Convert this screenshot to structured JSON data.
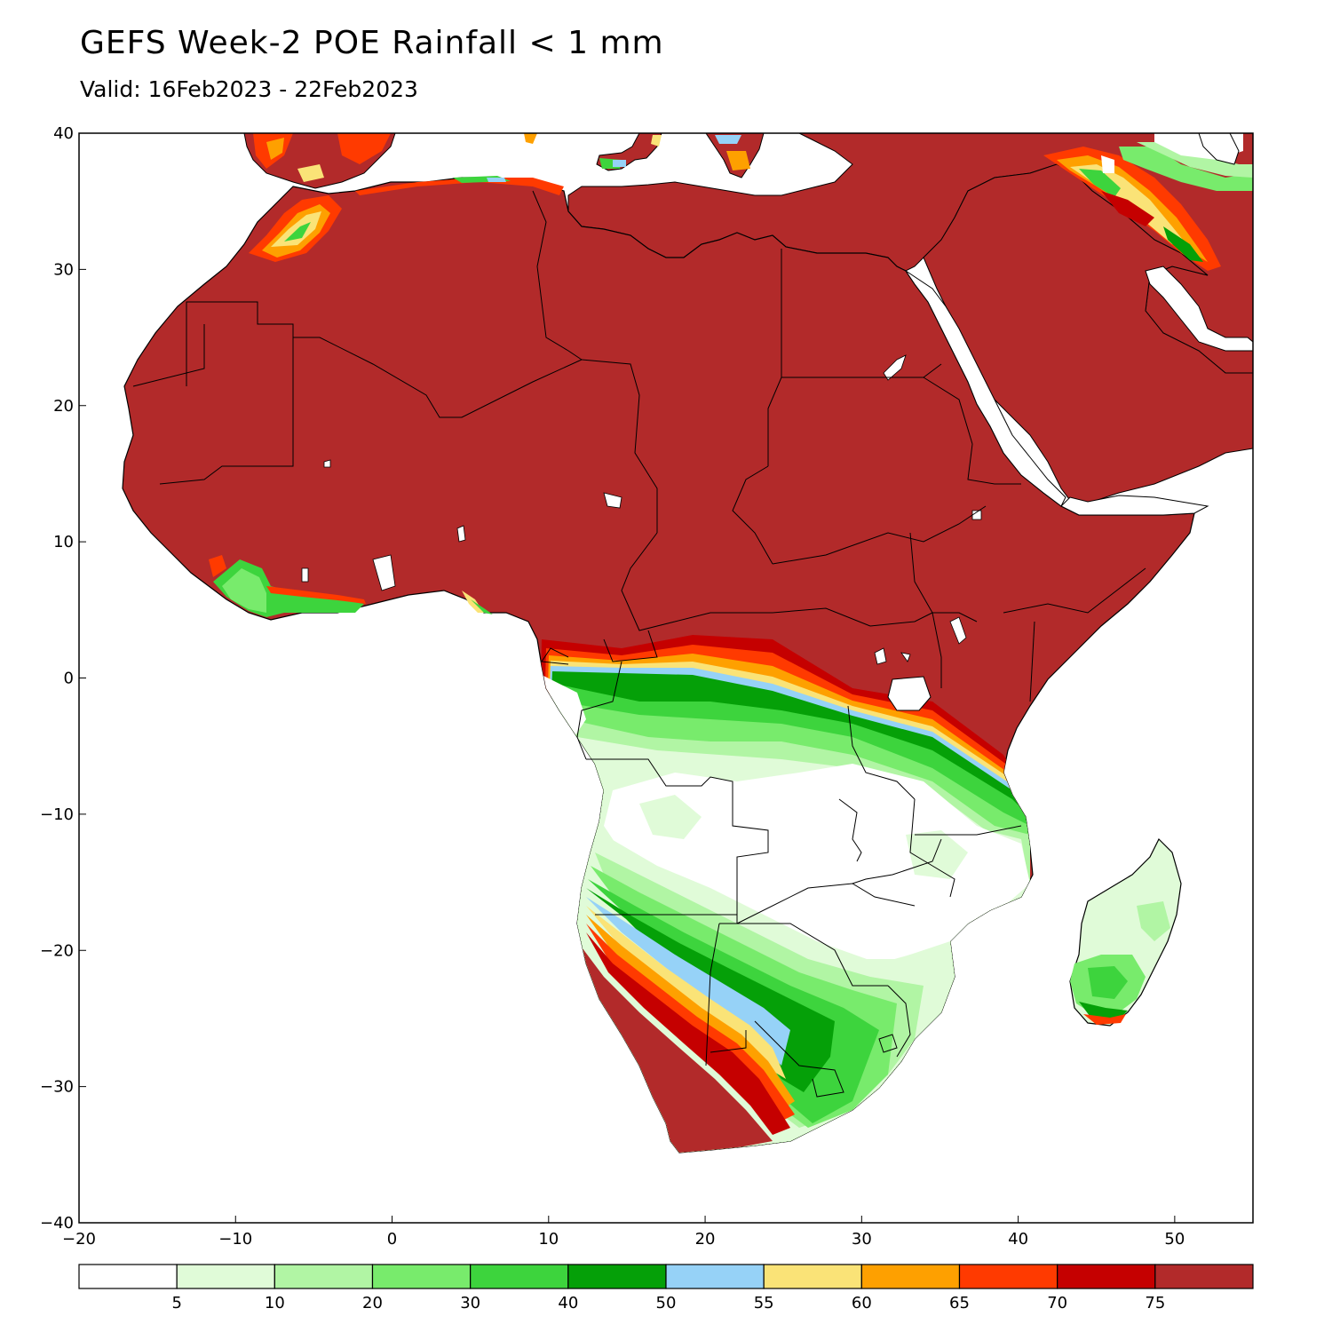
{
  "title": "GEFS Week-2 POE Rainfall < 1 mm",
  "subtitle": "Valid: 16Feb2023 - 22Feb2023",
  "map": {
    "lon_range": [
      -20,
      55
    ],
    "lat_range": [
      -40,
      40
    ],
    "x_ticks": [
      {
        "value": -20,
        "label": "−20"
      },
      {
        "value": -10,
        "label": "−10"
      },
      {
        "value": 0,
        "label": "0"
      },
      {
        "value": 10,
        "label": "10"
      },
      {
        "value": 20,
        "label": "20"
      },
      {
        "value": 30,
        "label": "30"
      },
      {
        "value": 40,
        "label": "40"
      },
      {
        "value": 50,
        "label": "50"
      }
    ],
    "y_ticks": [
      {
        "value": 40,
        "label": "40"
      },
      {
        "value": 30,
        "label": "30"
      },
      {
        "value": 20,
        "label": "20"
      },
      {
        "value": 10,
        "label": "10"
      },
      {
        "value": 0,
        "label": "0"
      },
      {
        "value": -10,
        "label": "−10"
      },
      {
        "value": -20,
        "label": "−20"
      },
      {
        "value": -30,
        "label": "−30"
      },
      {
        "value": -40,
        "label": "−40"
      }
    ]
  },
  "colorbar": {
    "colors": [
      "#ffffff",
      "#e0fbd8",
      "#b1f5a4",
      "#78eb6c",
      "#3dd43d",
      "#05a008",
      "#96d2f7",
      "#fae377",
      "#fea000",
      "#ff3a00",
      "#c50000",
      "#b22a2a"
    ],
    "labels": [
      "5",
      "10",
      "20",
      "30",
      "40",
      "50",
      "55",
      "60",
      "65",
      "70",
      "75"
    ]
  }
}
